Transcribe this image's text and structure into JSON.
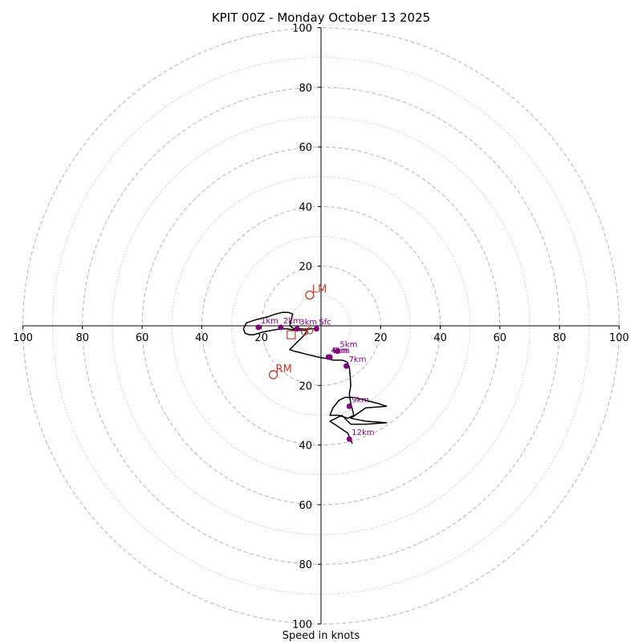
{
  "chart_data": {
    "type": "hodograph",
    "title": "KPIT 00Z - Monday October 13 2025",
    "xlabel": "Speed in knots",
    "range": [
      -100,
      100
    ],
    "major_rings": [
      20,
      40,
      60,
      80,
      100
    ],
    "minor_rings": [
      10,
      30,
      50,
      70,
      90
    ],
    "ring_style": {
      "major": "dashed",
      "minor": "dotted"
    },
    "tick_values": [
      20,
      40,
      60,
      80,
      100
    ],
    "x_tick_labels": [
      "100",
      "80",
      "60",
      "40",
      "20",
      "20",
      "40",
      "60",
      "80",
      "100"
    ],
    "y_tick_labels": [
      "100",
      "80",
      "60",
      "40",
      "20",
      "20",
      "40",
      "60",
      "80",
      "100"
    ],
    "colors": {
      "hodo_line": "#000000",
      "height_markers": "#800080",
      "storm_motion": "#c0392b",
      "rings": "#bbbbbb"
    },
    "hodograph": {
      "u": [
        -1.5,
        -3.5,
        -5.5,
        -8,
        -11.5,
        -13.5,
        -16.5,
        -19,
        -21,
        -22.5,
        -24,
        -25.5,
        -26,
        -25,
        -22,
        -18,
        -15,
        -13,
        -11,
        -9.5,
        -10,
        -10.5,
        -9,
        -7.5,
        -6,
        -5,
        -4.5,
        -5,
        -5.5,
        -6.5,
        -7.5,
        -8.5,
        -9.5,
        -10.5,
        -9,
        -7,
        -5,
        -3,
        -1,
        2,
        4,
        5,
        6,
        7,
        8.5,
        9,
        9.5,
        9.8,
        10,
        9.5,
        10,
        10.5,
        11,
        9,
        6,
        3,
        4,
        6,
        8,
        11,
        15,
        19,
        22,
        15,
        10,
        15,
        22,
        15,
        10,
        7,
        3,
        6,
        9,
        10.5
      ],
      "v": [
        -1,
        -1,
        -1.5,
        -1.5,
        -1,
        -1,
        -1.5,
        -2,
        -2.5,
        -3,
        -3,
        -2.5,
        -1,
        1,
        2,
        3,
        4,
        4.5,
        4.5,
        4,
        2,
        0,
        -1,
        -1,
        -1,
        -1,
        -1,
        -2,
        -3,
        -4,
        -5,
        -6,
        -7,
        -8,
        -8.5,
        -9,
        -9.5,
        -10,
        -10.5,
        -11,
        -11.5,
        -11.5,
        -11.5,
        -11.5,
        -12,
        -12.5,
        -14,
        -17,
        -20,
        -23,
        -26,
        -28,
        -30,
        -31,
        -30,
        -30,
        -27.5,
        -25,
        -24,
        -24,
        -25,
        -26,
        -27,
        -27.5,
        -31,
        -32,
        -32.5,
        -33,
        -33,
        -30,
        -32,
        -34,
        -36,
        -39.5
      ]
    },
    "height_markers": [
      {
        "label": "Sfc",
        "u": -1.5,
        "v": -1
      },
      {
        "label": "1km",
        "u": -21,
        "v": -0.5
      },
      {
        "label": "2km",
        "u": -13.5,
        "v": -0.5
      },
      {
        "label": "3km",
        "u": -8,
        "v": -1
      },
      {
        "label": "4km",
        "u": 2.5,
        "v": -10.5
      },
      {
        "label": "5km",
        "u": 5.5,
        "v": -8.5
      },
      {
        "label": "6km",
        "u": 3,
        "v": -10.5
      },
      {
        "label": "7km",
        "u": 8.5,
        "v": -13.5
      },
      {
        "label": "9km",
        "u": 9.5,
        "v": -27
      },
      {
        "label": "12km",
        "u": 9.5,
        "v": -38
      }
    ],
    "storm_motion": [
      {
        "label": "LM",
        "u": -3.8,
        "v": 10.3
      },
      {
        "label": "RM",
        "u": -16,
        "v": -16.4
      }
    ],
    "mean_wind_marker": {
      "u": -10,
      "v": -3
    },
    "extra_markers": [
      {
        "u": -5.5,
        "v": -2
      },
      {
        "u": -3.8,
        "v": -1.6
      }
    ]
  }
}
